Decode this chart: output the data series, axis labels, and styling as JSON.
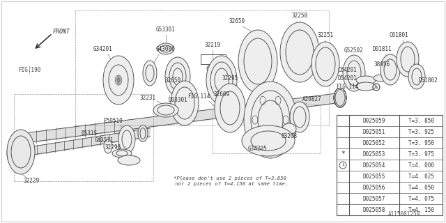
{
  "bg_color": "#ffffff",
  "lc": "#555555",
  "table": {
    "rows": [
      [
        "D025059",
        "T=3. 850"
      ],
      [
        "D025051",
        "T=3. 925"
      ],
      [
        "D025052",
        "T=3. 950"
      ],
      [
        "D025053",
        "T=3. 975"
      ],
      [
        "D025054",
        "T=4. 000"
      ],
      [
        "D025055",
        "T=4. 025"
      ],
      [
        "D025056",
        "T=4. 050"
      ],
      [
        "D025057",
        "T=4. 075"
      ],
      [
        "D025058",
        "T=4. 150"
      ]
    ]
  },
  "note_text": "*Please don't use 2 pieces of T=3.850\n nor 2 pieces of T=4.150 at same time.",
  "diagram_id": "A115001259",
  "front_label": "FRONT"
}
